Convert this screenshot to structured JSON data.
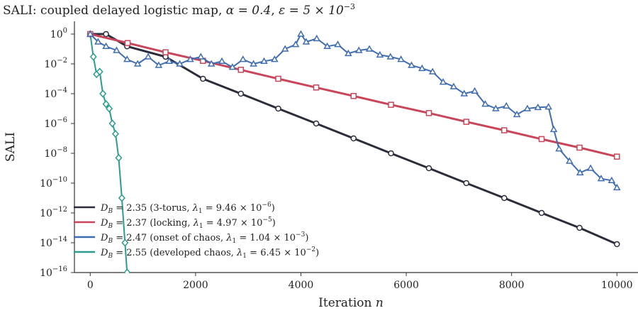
{
  "chart_data": {
    "type": "line",
    "title": "SALI: coupled delayed logistic map, α = 0.4, ε = 5 × 10⁻³",
    "title_parts": {
      "prefix": "SALI: coupled delayed logistic map, ",
      "alpha": "α = 0.4",
      "sep": ", ",
      "eps_base": "ε = 5 × 10",
      "eps_exp": "−3"
    },
    "xlabel": "Iteration n",
    "xlabel_parts": {
      "text": "Iteration ",
      "var": "n"
    },
    "ylabel": "SALI",
    "yscale": "log",
    "xlim": [
      -300,
      10400
    ],
    "ylim": [
      1e-16,
      10.0
    ],
    "x_ticks": [
      0,
      2000,
      4000,
      6000,
      8000,
      10000
    ],
    "x_tick_labels": [
      "0",
      "2000",
      "4000",
      "6000",
      "8000",
      "10000"
    ],
    "y_ticks": [
      1,
      0.01,
      0.0001,
      1e-06,
      1e-08,
      1e-10,
      1e-12,
      1e-14,
      1e-16
    ],
    "y_tick_labels": [
      {
        "base": "10",
        "exp": "0"
      },
      {
        "base": "10",
        "exp": "−2"
      },
      {
        "base": "10",
        "exp": "−4"
      },
      {
        "base": "10",
        "exp": "−6"
      },
      {
        "base": "10",
        "exp": "−8"
      },
      {
        "base": "10",
        "exp": "−10"
      },
      {
        "base": "10",
        "exp": "−12"
      },
      {
        "base": "10",
        "exp": "−14"
      },
      {
        "base": "10",
        "exp": "−16"
      }
    ],
    "grid": false,
    "legend_position": "lower-left",
    "series": [
      {
        "name": "D_B = 2.35 (3-torus, λ₁ = 9.46 × 10⁻⁶)",
        "legend": {
          "db": "D",
          "db_sub": "B",
          "eq": " = 2.35 (3-torus, ",
          "lam": "λ",
          "lam_sub": "1",
          "val": " = 9.46 × 10",
          "exp": "−6",
          "close": ")"
        },
        "color": "#2b2d3a",
        "marker": "circle",
        "x": [
          0,
          300,
          700,
          1430,
          2140,
          2860,
          3570,
          4290,
          5000,
          5710,
          6430,
          7140,
          7860,
          8570,
          9290,
          10000
        ],
        "y": [
          1,
          1,
          0.15,
          0.03,
          0.001,
          0.0001,
          1e-05,
          1e-06,
          1e-07,
          1e-08,
          1e-09,
          1e-10,
          1e-11,
          1e-12,
          1e-13,
          8e-15
        ]
      },
      {
        "name": "D_B = 2.37 (locking, λ₁ = 4.97 × 10⁻⁵)",
        "legend": {
          "db": "D",
          "db_sub": "B",
          "eq": " = 2.37 (locking, ",
          "lam": "λ",
          "lam_sub": "1",
          "val": " = 4.97 × 10",
          "exp": "−5",
          "close": ")"
        },
        "color": "#c9465a",
        "marker": "square",
        "x": [
          0,
          710,
          1430,
          2140,
          2860,
          3570,
          4290,
          5000,
          5710,
          6430,
          7140,
          7860,
          8570,
          9290,
          10000
        ],
        "y": [
          1,
          0.25,
          0.06,
          0.016,
          0.004,
          0.001,
          0.00026,
          7e-05,
          1.8e-05,
          5e-06,
          1.3e-06,
          3.5e-07,
          9e-08,
          2.4e-08,
          6e-09
        ]
      },
      {
        "name": "D_B = 2.47 (onset of chaos, λ₁ = 1.04 × 10⁻³)",
        "legend": {
          "db": "D",
          "db_sub": "B",
          "eq": " = 2.47 (onset of chaos, ",
          "lam": "λ",
          "lam_sub": "1",
          "val": " = 1.04 × 10",
          "exp": "−3",
          "close": ")"
        },
        "color": "#3f6db3",
        "marker": "triangle",
        "x": [
          0,
          150,
          300,
          500,
          700,
          900,
          1100,
          1300,
          1500,
          1700,
          1900,
          2100,
          2300,
          2500,
          2700,
          2900,
          3100,
          3300,
          3500,
          3700,
          3900,
          4000,
          4100,
          4300,
          4500,
          4700,
          4900,
          5100,
          5300,
          5500,
          5700,
          5900,
          6100,
          6300,
          6500,
          6700,
          6900,
          7100,
          7300,
          7500,
          7700,
          7900,
          8100,
          8300,
          8500,
          8700,
          8800,
          8900,
          9100,
          9300,
          9500,
          9700,
          9900,
          10000
        ],
        "y": [
          1,
          0.3,
          0.15,
          0.08,
          0.02,
          0.01,
          0.03,
          0.008,
          0.015,
          0.01,
          0.02,
          0.03,
          0.01,
          0.015,
          0.006,
          0.02,
          0.01,
          0.015,
          0.02,
          0.1,
          0.2,
          1,
          0.3,
          0.5,
          0.15,
          0.2,
          0.05,
          0.08,
          0.1,
          0.04,
          0.03,
          0.02,
          0.008,
          0.005,
          0.003,
          0.0006,
          0.0003,
          0.0001,
          0.00015,
          2e-05,
          1e-05,
          1.5e-05,
          4e-06,
          1e-05,
          1.2e-05,
          1.3e-05,
          4e-07,
          2e-08,
          3e-09,
          5e-10,
          1e-09,
          2e-10,
          1.5e-10,
          5e-11
        ]
      },
      {
        "name": "D_B = 2.55 (developed chaos, λ₁ = 6.45 × 10⁻²)",
        "legend": {
          "db": "D",
          "db_sub": "B",
          "eq": " = 2.55 (developed chaos, ",
          "lam": "λ",
          "lam_sub": "1",
          "val": " = 6.45 × 10",
          "exp": "−2",
          "close": ")"
        },
        "color": "#2a9d8f",
        "marker": "diamond",
        "x": [
          0,
          60,
          120,
          180,
          240,
          300,
          360,
          420,
          480,
          540,
          600,
          660,
          700
        ],
        "y": [
          1,
          0.03,
          0.002,
          0.003,
          0.0001,
          2e-05,
          1e-05,
          1e-06,
          2e-07,
          5e-09,
          1e-11,
          1e-14,
          1e-16
        ]
      }
    ]
  }
}
